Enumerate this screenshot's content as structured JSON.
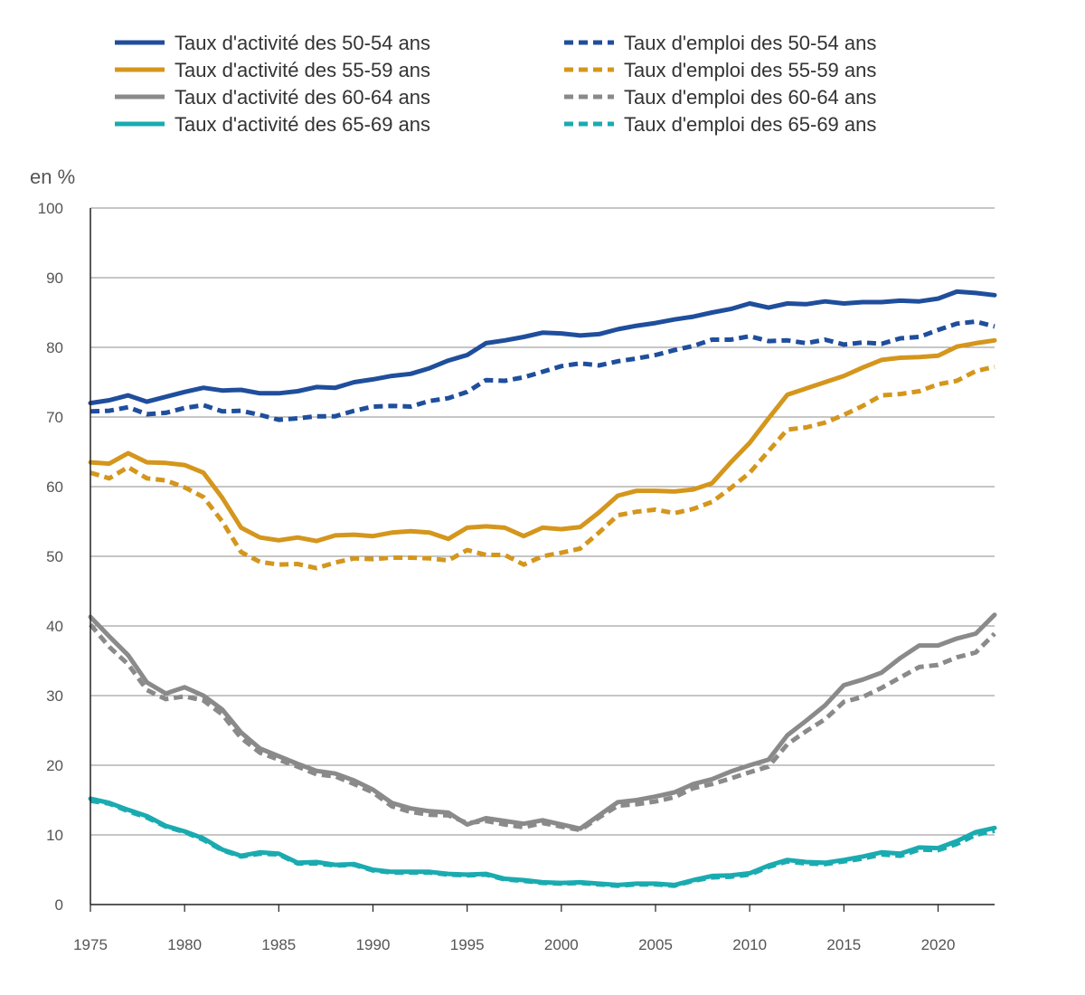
{
  "chart_data": {
    "type": "line",
    "title": "",
    "xlabel": "",
    "ylabel": "en %",
    "xlim": [
      1975,
      2023
    ],
    "ylim": [
      0,
      100
    ],
    "x_ticks": [
      1975,
      1980,
      1985,
      1990,
      1995,
      2000,
      2005,
      2010,
      2015,
      2020
    ],
    "y_ticks": [
      0,
      10,
      20,
      30,
      40,
      50,
      60,
      70,
      80,
      90,
      100
    ],
    "grid": "horizontal",
    "legend_position": "top",
    "x": [
      1975,
      1976,
      1977,
      1978,
      1979,
      1980,
      1981,
      1982,
      1983,
      1984,
      1985,
      1986,
      1987,
      1988,
      1989,
      1990,
      1991,
      1992,
      1993,
      1994,
      1995,
      1996,
      1997,
      1998,
      1999,
      2000,
      2001,
      2002,
      2003,
      2004,
      2005,
      2006,
      2007,
      2008,
      2009,
      2010,
      2011,
      2012,
      2013,
      2014,
      2015,
      2016,
      2017,
      2018,
      2019,
      2020,
      2021,
      2022,
      2023
    ],
    "series": [
      {
        "name": "Taux d'activité des 50-54 ans",
        "color": "#1f4e9c",
        "dash": false,
        "values": [
          72.0,
          72.4,
          73.1,
          72.2,
          72.9,
          73.6,
          74.2,
          73.8,
          73.9,
          73.4,
          73.4,
          73.7,
          74.3,
          74.2,
          75.0,
          75.4,
          75.9,
          76.2,
          77.0,
          78.1,
          78.9,
          80.6,
          81.0,
          81.5,
          82.1,
          82.0,
          81.7,
          81.9,
          82.6,
          83.1,
          83.5,
          84.0,
          84.4,
          85.0,
          85.5,
          86.3,
          85.7,
          86.3,
          86.2,
          86.6,
          86.3,
          86.5,
          86.5,
          86.7,
          86.6,
          87.0,
          88.0,
          87.8,
          87.5
        ]
      },
      {
        "name": "Taux d'activité des 55-59 ans",
        "color": "#d4961c",
        "dash": false,
        "values": [
          63.5,
          63.3,
          64.8,
          63.5,
          63.4,
          63.1,
          62.0,
          58.4,
          54.1,
          52.7,
          52.3,
          52.7,
          52.2,
          53.0,
          53.1,
          52.9,
          53.4,
          53.6,
          53.4,
          52.5,
          54.1,
          54.3,
          54.1,
          52.9,
          54.1,
          53.9,
          54.2,
          56.3,
          58.7,
          59.4,
          59.4,
          59.3,
          59.6,
          60.5,
          63.5,
          66.3,
          69.8,
          73.2,
          74.1,
          75.0,
          75.9,
          77.1,
          78.2,
          78.5,
          78.6,
          78.8,
          80.1,
          80.6,
          81.0
        ]
      },
      {
        "name": "Taux d'activité des 60-64 ans",
        "color": "#8a8a8a",
        "dash": false,
        "values": [
          41.3,
          38.5,
          35.8,
          31.9,
          30.3,
          31.2,
          30.0,
          28.0,
          24.7,
          22.4,
          21.3,
          20.2,
          19.2,
          18.8,
          17.8,
          16.5,
          14.6,
          13.8,
          13.4,
          13.2,
          11.5,
          12.4,
          12.0,
          11.6,
          12.1,
          11.5,
          10.9,
          12.8,
          14.7,
          15.0,
          15.5,
          16.1,
          17.3,
          18.0,
          19.1,
          20.0,
          20.8,
          24.3,
          26.4,
          28.6,
          31.5,
          32.3,
          33.3,
          35.4,
          37.2,
          37.2,
          38.2,
          38.9,
          41.6
        ]
      },
      {
        "name": "Taux d'activité des 65-69 ans",
        "color": "#1aabb0",
        "dash": false,
        "values": [
          15.2,
          14.6,
          13.6,
          12.7,
          11.3,
          10.5,
          9.5,
          7.9,
          7.0,
          7.5,
          7.3,
          6.0,
          6.1,
          5.7,
          5.8,
          5.0,
          4.7,
          4.7,
          4.7,
          4.4,
          4.3,
          4.4,
          3.7,
          3.5,
          3.2,
          3.1,
          3.2,
          3.0,
          2.8,
          3.0,
          3.0,
          2.8,
          3.5,
          4.1,
          4.2,
          4.5,
          5.6,
          6.4,
          6.1,
          6.0,
          6.4,
          6.9,
          7.5,
          7.3,
          8.2,
          8.1,
          9.1,
          10.4,
          11.0
        ]
      },
      {
        "name": "Taux d'emploi des 50-54 ans",
        "color": "#1f4e9c",
        "dash": true,
        "values": [
          70.8,
          70.9,
          71.4,
          70.4,
          70.6,
          71.3,
          71.7,
          70.8,
          70.9,
          70.3,
          69.6,
          69.8,
          70.1,
          70.1,
          70.9,
          71.5,
          71.6,
          71.5,
          72.3,
          72.7,
          73.6,
          75.3,
          75.2,
          75.7,
          76.5,
          77.3,
          77.7,
          77.4,
          78.0,
          78.4,
          78.9,
          79.6,
          80.2,
          81.1,
          81.1,
          81.6,
          80.9,
          81.0,
          80.6,
          81.1,
          80.4,
          80.7,
          80.5,
          81.3,
          81.5,
          82.5,
          83.4,
          83.7,
          83.0
        ]
      },
      {
        "name": "Taux d'emploi des 55-59 ans",
        "color": "#d4961c",
        "dash": true,
        "values": [
          62.0,
          61.2,
          62.8,
          61.2,
          60.9,
          59.9,
          58.5,
          55.0,
          50.6,
          49.2,
          48.8,
          48.9,
          48.3,
          49.1,
          49.7,
          49.6,
          49.8,
          49.8,
          49.7,
          49.4,
          50.9,
          50.2,
          50.2,
          48.8,
          50.0,
          50.5,
          51.1,
          53.4,
          55.9,
          56.4,
          56.7,
          56.2,
          56.8,
          57.8,
          59.8,
          62.0,
          65.1,
          68.2,
          68.5,
          69.2,
          70.3,
          71.6,
          73.1,
          73.3,
          73.7,
          74.7,
          75.2,
          76.6,
          77.2
        ]
      },
      {
        "name": "Taux d'emploi des 60-64 ans",
        "color": "#8a8a8a",
        "dash": true,
        "values": [
          40.2,
          37.0,
          34.5,
          30.8,
          29.5,
          29.9,
          29.3,
          27.3,
          23.9,
          21.8,
          20.8,
          19.8,
          18.7,
          18.4,
          17.3,
          16.1,
          14.1,
          13.3,
          12.9,
          12.8,
          11.7,
          12.0,
          11.5,
          11.1,
          11.7,
          11.2,
          10.7,
          12.5,
          14.2,
          14.4,
          14.8,
          15.4,
          16.7,
          17.3,
          18.1,
          19.0,
          19.8,
          23.0,
          24.9,
          26.6,
          29.1,
          29.8,
          31.1,
          32.6,
          34.1,
          34.4,
          35.5,
          36.2,
          38.9
        ]
      },
      {
        "name": "Taux d'emploi des 65-69 ans",
        "color": "#1aabb0",
        "dash": true,
        "values": [
          14.9,
          14.5,
          13.4,
          12.5,
          11.2,
          10.4,
          9.3,
          7.8,
          6.9,
          7.3,
          7.2,
          5.9,
          5.9,
          5.6,
          5.7,
          4.9,
          4.6,
          4.6,
          4.6,
          4.3,
          4.2,
          4.3,
          3.6,
          3.4,
          3.1,
          3.0,
          3.1,
          2.9,
          2.7,
          2.9,
          2.9,
          2.7,
          3.4,
          3.9,
          4.0,
          4.3,
          5.4,
          6.2,
          5.9,
          5.8,
          6.2,
          6.6,
          7.2,
          7.0,
          7.9,
          7.8,
          8.7,
          10.0,
          10.6
        ]
      }
    ]
  }
}
